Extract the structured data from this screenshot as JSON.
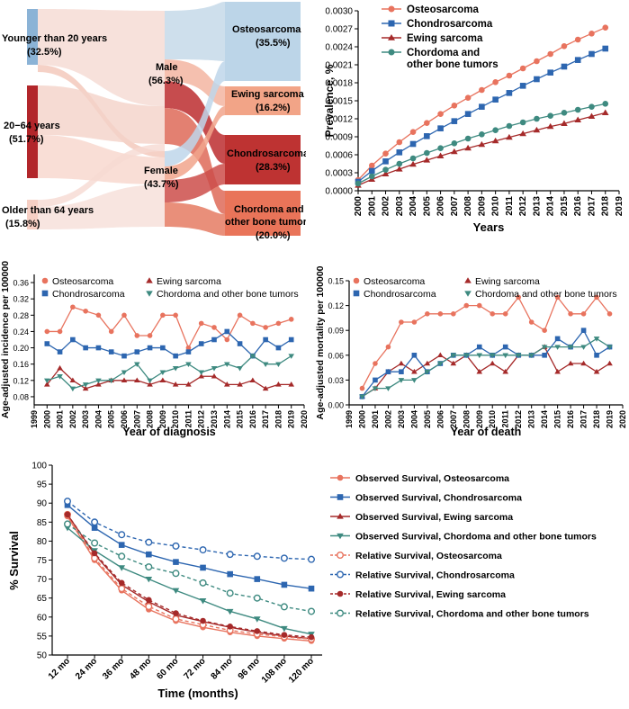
{
  "chart_data": [
    {
      "type": "sankey",
      "panel": "A",
      "nodes": {
        "age": [
          {
            "label": "Younger than 20 years",
            "pct": "(32.5%)",
            "color": "#8bb3d6"
          },
          {
            "label": "20−64 years",
            "pct": "(51.7%)",
            "color": "#b2262a"
          },
          {
            "label": "Older than 64 years",
            "pct": "(15.8%)",
            "color": "#f6cfc4"
          }
        ],
        "sex": [
          {
            "label": "Male",
            "pct": "(56.3%)"
          },
          {
            "label": "Female",
            "pct": "(43.7%)"
          }
        ],
        "type": [
          {
            "label": "Osteosarcoma",
            "pct": "(35.5%)",
            "color": "#bcd5e8"
          },
          {
            "label": "Ewing sarcoma",
            "pct": "(16.2%)",
            "color": "#f2a487"
          },
          {
            "label": "Chondrosarcoma",
            "pct": "(28.3%)",
            "color": "#be3332"
          },
          {
            "label": "Chordoma and other bone tumors",
            "label_lines": [
              "Chordoma and",
              "other bone tumors"
            ],
            "pct": "(20.0%)",
            "color": "#e97459"
          }
        ]
      }
    },
    {
      "type": "line",
      "panel": "B",
      "title": "",
      "xlabel": "Years",
      "ylabel": "Prevalence, %",
      "x": [
        2000,
        2001,
        2002,
        2003,
        2004,
        2005,
        2006,
        2007,
        2008,
        2009,
        2010,
        2011,
        2012,
        2013,
        2014,
        2015,
        2016,
        2017,
        2018
      ],
      "x_ticks": [
        "2000",
        "2001",
        "2002",
        "2003",
        "2004",
        "2005",
        "2006",
        "2007",
        "2008",
        "2009",
        "2010",
        "2011",
        "2012",
        "2013",
        "2014",
        "2015",
        "2016",
        "2017",
        "2018",
        "2019"
      ],
      "xlim": [
        2000,
        2019
      ],
      "y_ticks": [
        "0.0000",
        "0.0003",
        "0.0006",
        "0.0009",
        "0.0012",
        "0.0015",
        "0.0018",
        "0.0021",
        "0.0024",
        "0.0027",
        "0.0030"
      ],
      "ylim": [
        0,
        0.003
      ],
      "legend_position": "top-left",
      "series": [
        {
          "name": "Osteosarcoma",
          "color": "#e8735e",
          "marker": "circle",
          "values": [
            0.00018,
            0.00042,
            0.00062,
            0.00081,
            0.00098,
            0.00113,
            0.00128,
            0.00142,
            0.00155,
            0.00168,
            0.00181,
            0.00192,
            0.00204,
            0.00216,
            0.00228,
            0.00241,
            0.00252,
            0.00262,
            0.00272
          ]
        },
        {
          "name": "Chondrosarcoma",
          "color": "#2d66b0",
          "marker": "square",
          "values": [
            0.00015,
            0.00033,
            0.00049,
            0.00064,
            0.00078,
            0.00091,
            0.00104,
            0.00116,
            0.00128,
            0.0014,
            0.00152,
            0.00163,
            0.00175,
            0.00186,
            0.00197,
            0.00207,
            0.00218,
            0.00228,
            0.00237
          ]
        },
        {
          "name": "Ewing sarcoma",
          "color": "#a52a2a",
          "marker": "triangle",
          "values": [
            9e-05,
            0.00019,
            0.00028,
            0.00036,
            0.00044,
            0.00051,
            0.00058,
            0.00065,
            0.00071,
            0.00077,
            0.00083,
            0.00089,
            0.00095,
            0.00101,
            0.00107,
            0.00112,
            0.00118,
            0.00124,
            0.0013
          ]
        },
        {
          "name": "Chordoma and other bone tumors",
          "legend_lines": [
            "Chordoma and",
            "other bone tumors"
          ],
          "color": "#3e8a80",
          "marker": "circle",
          "values": [
            0.00012,
            0.00024,
            0.00035,
            0.00045,
            0.00054,
            0.00063,
            0.00071,
            0.00079,
            0.00087,
            0.00094,
            0.00101,
            0.00108,
            0.00114,
            0.0012,
            0.00125,
            0.0013,
            0.00135,
            0.0014,
            0.00145
          ]
        }
      ]
    },
    {
      "type": "line",
      "panel": "C",
      "xlabel": "Year of diagnosis",
      "ylabel": "Age-adjusted incidence per 100000",
      "x": [
        2000,
        2001,
        2002,
        2003,
        2004,
        2005,
        2006,
        2007,
        2008,
        2009,
        2010,
        2011,
        2012,
        2013,
        2014,
        2015,
        2016,
        2017,
        2018,
        2019
      ],
      "x_ticks": [
        "1999",
        "2000",
        "2001",
        "2002",
        "2003",
        "2004",
        "2005",
        "2006",
        "2007",
        "2008",
        "2009",
        "2010",
        "2011",
        "2012",
        "2013",
        "2014",
        "2015",
        "2016",
        "2017",
        "2018",
        "2019",
        "2020"
      ],
      "xlim": [
        1999,
        2020
      ],
      "y_ticks": [
        "0.08",
        "0.12",
        "0.16",
        "0.20",
        "0.24",
        "0.28",
        "0.32",
        "0.36"
      ],
      "ylim": [
        0.06,
        0.38
      ],
      "legend_position": "top",
      "series": [
        {
          "name": "Osteosarcoma",
          "color": "#e8735e",
          "marker": "circle",
          "values": [
            0.24,
            0.24,
            0.3,
            0.29,
            0.28,
            0.24,
            0.28,
            0.23,
            0.23,
            0.28,
            0.28,
            0.2,
            0.26,
            0.25,
            0.22,
            0.28,
            0.26,
            0.25,
            0.26,
            0.27
          ]
        },
        {
          "name": "Ewing sarcoma",
          "color": "#a52a2a",
          "marker": "triangle",
          "values": [
            0.11,
            0.15,
            0.12,
            0.1,
            0.11,
            0.12,
            0.12,
            0.12,
            0.11,
            0.12,
            0.11,
            0.11,
            0.13,
            0.13,
            0.11,
            0.11,
            0.12,
            0.1,
            0.11,
            0.11
          ]
        },
        {
          "name": "Chondrosarcoma",
          "color": "#2d66b0",
          "marker": "square",
          "values": [
            0.21,
            0.19,
            0.22,
            0.2,
            0.2,
            0.19,
            0.18,
            0.19,
            0.2,
            0.2,
            0.18,
            0.19,
            0.21,
            0.22,
            0.24,
            0.21,
            0.18,
            0.22,
            0.2,
            0.22
          ]
        },
        {
          "name": "Chordoma and other bone tumors",
          "color": "#3e8a80",
          "marker": "triangle-down",
          "values": [
            0.12,
            0.13,
            0.1,
            0.11,
            0.12,
            0.12,
            0.14,
            0.16,
            0.12,
            0.14,
            0.15,
            0.16,
            0.14,
            0.15,
            0.16,
            0.15,
            0.18,
            0.16,
            0.16,
            0.18
          ]
        }
      ]
    },
    {
      "type": "line",
      "panel": "D",
      "xlabel": "Year of death",
      "ylabel": "Age-adjusted mortality per 100000",
      "x": [
        2000,
        2001,
        2002,
        2003,
        2004,
        2005,
        2006,
        2007,
        2008,
        2009,
        2010,
        2011,
        2012,
        2013,
        2014,
        2015,
        2016,
        2017,
        2018,
        2019
      ],
      "x_ticks": [
        "1999",
        "2000",
        "2001",
        "2002",
        "2003",
        "2004",
        "2005",
        "2006",
        "2007",
        "2008",
        "2009",
        "2010",
        "2011",
        "2012",
        "2013",
        "2014",
        "2015",
        "2016",
        "2017",
        "2018",
        "2019",
        "2020"
      ],
      "xlim": [
        1999,
        2020
      ],
      "y_ticks": [
        "0.00",
        "0.03",
        "0.06",
        "0.09",
        "0.12",
        "0.15"
      ],
      "ylim": [
        0,
        0.15
      ],
      "legend_position": "top",
      "series": [
        {
          "name": "Osteosarcoma",
          "color": "#e8735e",
          "marker": "circle",
          "values": [
            0.02,
            0.05,
            0.07,
            0.1,
            0.1,
            0.11,
            0.11,
            0.11,
            0.12,
            0.12,
            0.11,
            0.11,
            0.13,
            0.1,
            0.09,
            0.13,
            0.11,
            0.11,
            0.13,
            0.11
          ]
        },
        {
          "name": "Ewing sarcoma",
          "color": "#a52a2a",
          "marker": "triangle",
          "values": [
            0.01,
            0.02,
            0.04,
            0.05,
            0.04,
            0.05,
            0.06,
            0.05,
            0.06,
            0.04,
            0.05,
            0.04,
            0.06,
            0.06,
            0.07,
            0.04,
            0.05,
            0.05,
            0.04,
            0.05
          ]
        },
        {
          "name": "Chondrosarcoma",
          "color": "#2d66b0",
          "marker": "square",
          "values": [
            0.01,
            0.03,
            0.04,
            0.04,
            0.06,
            0.04,
            0.05,
            0.06,
            0.06,
            0.07,
            0.06,
            0.07,
            0.06,
            0.06,
            0.06,
            0.08,
            0.07,
            0.09,
            0.06,
            0.07
          ]
        },
        {
          "name": "Chordoma and other bone tumors",
          "color": "#3e8a80",
          "marker": "triangle-down",
          "values": [
            0.01,
            0.02,
            0.02,
            0.03,
            0.03,
            0.04,
            0.05,
            0.06,
            0.06,
            0.06,
            0.06,
            0.06,
            0.06,
            0.06,
            0.07,
            0.07,
            0.07,
            0.07,
            0.08,
            0.07
          ]
        }
      ]
    },
    {
      "type": "line",
      "panel": "E",
      "xlabel": "Time (months)",
      "ylabel": "% Survival",
      "categories": [
        "12 mo",
        "24 mo",
        "36 mo",
        "48 mo",
        "60 mo",
        "72 mo",
        "84 mo",
        "96 mo",
        "108 mo",
        "120 mo"
      ],
      "y_ticks": [
        "50",
        "55",
        "60",
        "65",
        "70",
        "75",
        "80",
        "85",
        "90",
        "95",
        "100"
      ],
      "ylim": [
        50,
        100
      ],
      "legend_position": "right",
      "series": [
        {
          "name": "Observed Survival, Osteosarcoma",
          "color": "#e8735e",
          "marker": "circle",
          "dashed": false,
          "values": [
            86.5,
            75.0,
            67.0,
            62.0,
            59.0,
            57.3,
            56.0,
            55.0,
            54.3,
            53.7
          ]
        },
        {
          "name": "Observed Survival, Chondrosarcoma",
          "color": "#2d66b0",
          "marker": "square",
          "dashed": false,
          "values": [
            89.5,
            83.5,
            79.0,
            76.5,
            74.5,
            73.0,
            71.3,
            70.0,
            68.5,
            67.5
          ]
        },
        {
          "name": "Observed Survival, Ewing sarcoma",
          "color": "#a52a2a",
          "marker": "triangle",
          "dashed": false,
          "values": [
            87.0,
            76.5,
            68.5,
            64.0,
            60.5,
            58.8,
            57.3,
            56.0,
            55.0,
            54.3
          ]
        },
        {
          "name": "Observed Survival, Chordoma and other bone tumors",
          "color": "#3e8a80",
          "marker": "triangle-down",
          "dashed": false,
          "values": [
            83.5,
            77.5,
            73.0,
            70.0,
            67.0,
            64.3,
            61.5,
            59.5,
            57.0,
            55.5
          ]
        },
        {
          "name": "Relative Survival, Osteosarcoma",
          "color": "#e8735e",
          "marker": "circle-open",
          "dashed": true,
          "values": [
            87.0,
            75.5,
            67.5,
            62.8,
            59.5,
            58.0,
            56.5,
            55.5,
            54.8,
            54.2
          ]
        },
        {
          "name": "Relative Survival, Chondrosarcoma",
          "color": "#2d66b0",
          "marker": "circle-open",
          "dashed": true,
          "values": [
            90.5,
            85.0,
            81.7,
            79.7,
            78.7,
            77.7,
            76.5,
            76.0,
            75.5,
            75.2
          ]
        },
        {
          "name": "Relative Survival, Ewing sarcoma",
          "color": "#a52a2a",
          "marker": "circle",
          "dashed": true,
          "values": [
            87.0,
            76.8,
            69.0,
            64.5,
            61.0,
            59.0,
            57.5,
            56.3,
            55.3,
            54.7
          ]
        },
        {
          "name": "Relative Survival, Chordoma and other bone tumors",
          "color": "#3e8a80",
          "marker": "circle-open",
          "dashed": true,
          "values": [
            84.5,
            79.5,
            76.0,
            73.2,
            71.5,
            69.0,
            66.3,
            65.0,
            62.7,
            61.5
          ]
        }
      ]
    }
  ]
}
